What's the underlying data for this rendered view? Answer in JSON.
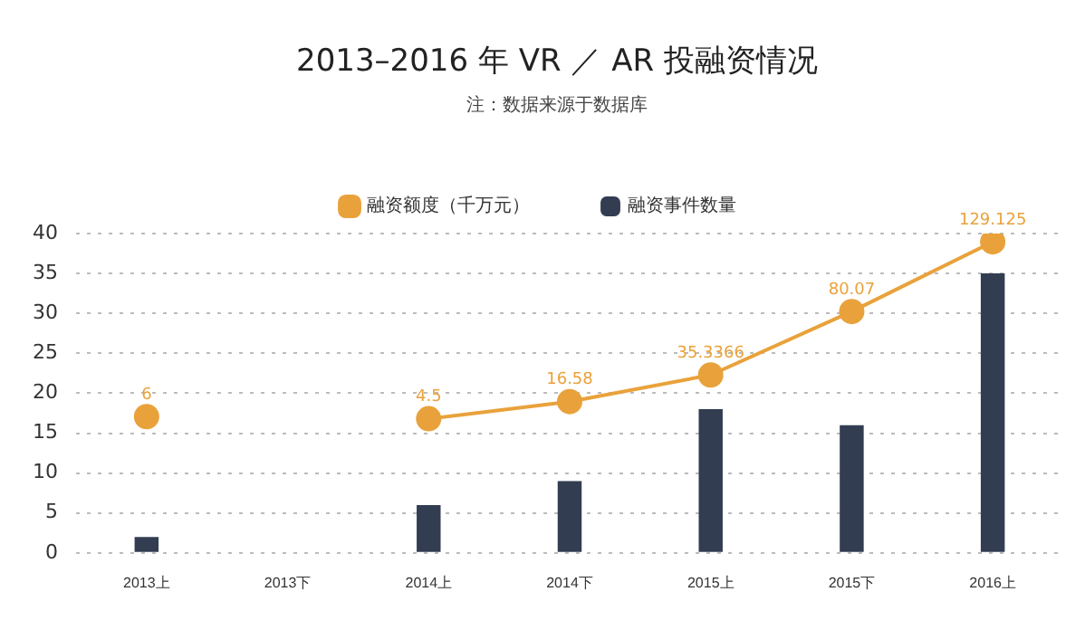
{
  "chart_data": {
    "type": "bar",
    "title": "2013–2016 年 VR ／ AR 投融资情况",
    "subtitle": "注：数据来源于数据库",
    "categories": [
      "2013上",
      "2013下",
      "2014上",
      "2014下",
      "2015上",
      "2015下",
      "2016上"
    ],
    "series": [
      {
        "name": "融资事件数量",
        "color": "#333d52",
        "values": [
          2,
          null,
          6,
          9,
          18,
          16,
          35
        ]
      },
      {
        "name": "融资额度（千万元）",
        "type": "line",
        "axis": "y2",
        "color": "#e9a23b",
        "marker": "circle",
        "values": [
          6,
          null,
          4.5,
          16.58,
          35.3366,
          80.07,
          129.125
        ],
        "value_labels": [
          "6",
          null,
          "4.5",
          "16.58",
          "35.3366",
          "80.07",
          "129.125"
        ]
      }
    ],
    "ylim": [
      0,
      40
    ],
    "yticks": [
      0,
      5,
      10,
      15,
      20,
      25,
      30,
      35,
      40
    ],
    "y2lim": [
      -90,
      135
    ],
    "grid": "y",
    "legend": "top"
  }
}
